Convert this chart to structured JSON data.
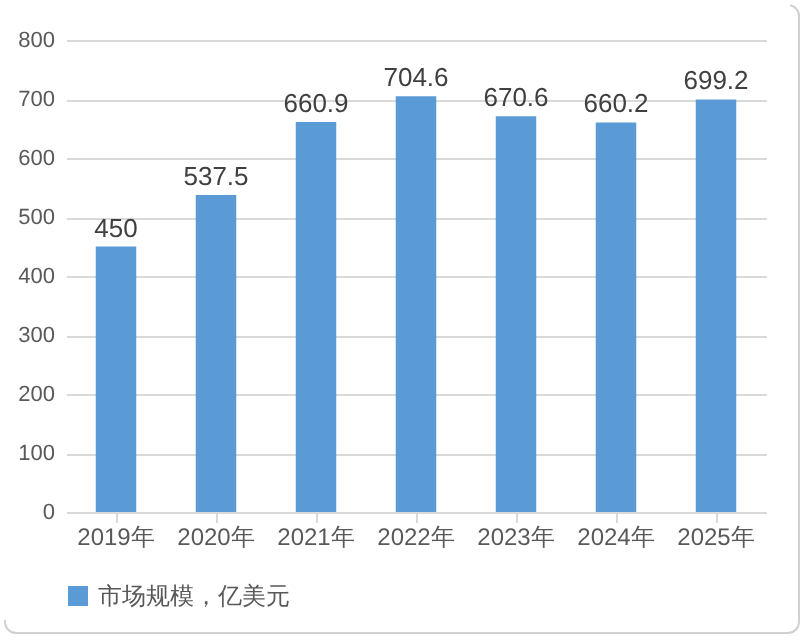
{
  "chart_data": {
    "type": "bar",
    "categories": [
      "2019年",
      "2020年",
      "2021年",
      "2022年",
      "2023年",
      "2024年",
      "2025年"
    ],
    "series": [
      {
        "name": "市场规模，亿美元",
        "color": "#5b9bd5",
        "values": [
          450,
          537.5,
          660.9,
          704.6,
          670.6,
          660.2,
          699.2
        ]
      }
    ],
    "ylim": [
      0,
      800
    ],
    "yticks": [
      0,
      100,
      200,
      300,
      400,
      500,
      600,
      700,
      800
    ],
    "grid": "y",
    "legend": "bottom",
    "data_labels": true
  }
}
